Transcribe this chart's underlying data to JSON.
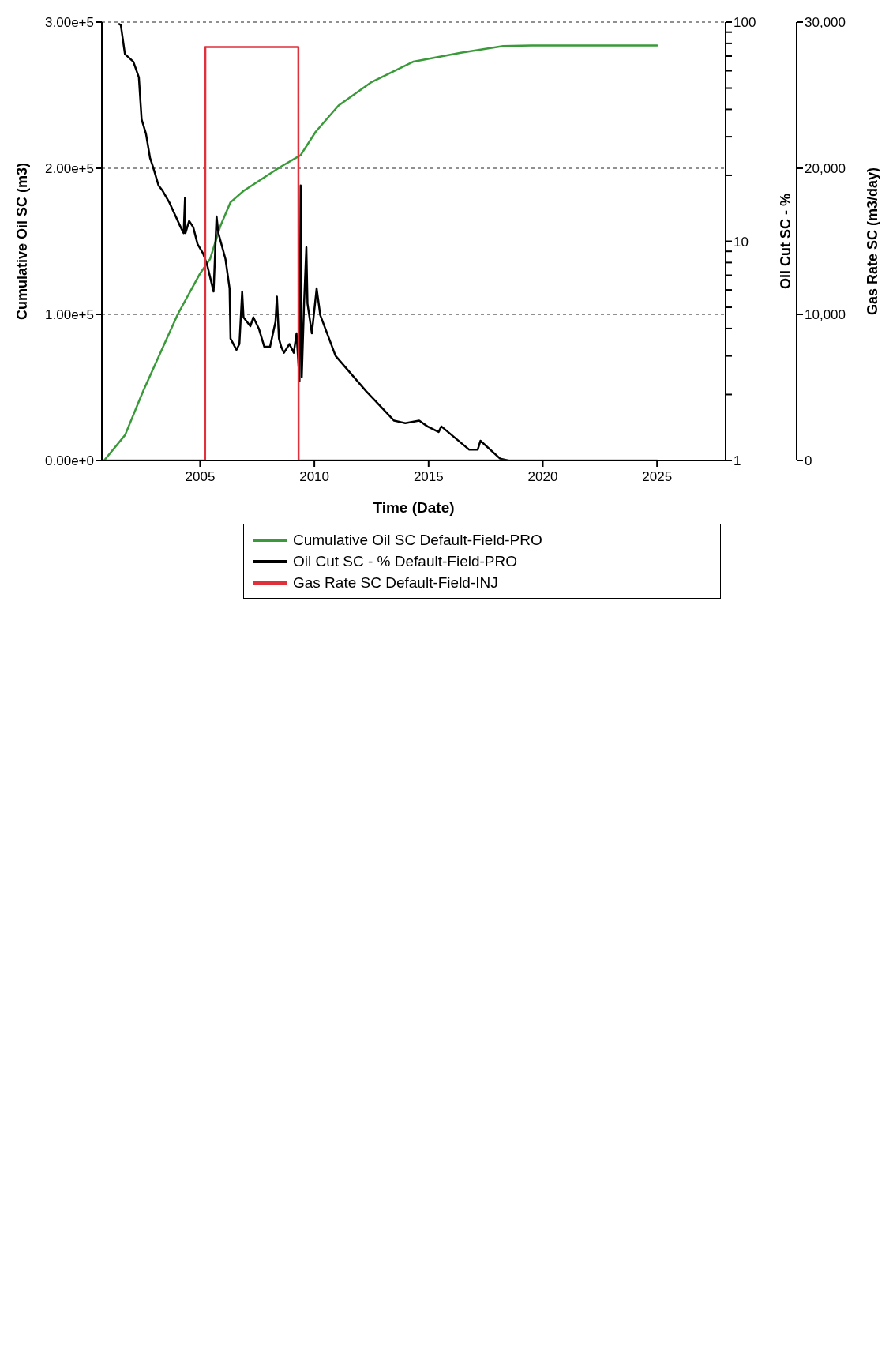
{
  "chart_data": {
    "type": "line",
    "xlabel": "Time (Date)",
    "ylabel": "Cumulative Oil SC (m3)",
    "y2label": "Oil Cut SC - %",
    "y3label": "Gas Rate SC (m3/day)",
    "xlim": [
      2000.7,
      2028
    ],
    "xticks": [
      2005,
      2010,
      2015,
      2020,
      2025
    ],
    "ylim": [
      0,
      300000
    ],
    "yticks": [
      {
        "value": 0,
        "label": "0.00e+0"
      },
      {
        "value": 100000,
        "label": "1.00e+5"
      },
      {
        "value": 200000,
        "label": "2.00e+5"
      },
      {
        "value": 300000,
        "label": "3.00e+5"
      }
    ],
    "y2lim": [
      1,
      100
    ],
    "y2ticks": [
      1,
      {
        "value": 2,
        "label": null
      },
      {
        "value": 3,
        "label": null
      },
      {
        "value": 4,
        "label": null
      },
      {
        "value": 5,
        "label": null
      },
      {
        "value": 6,
        "label": null
      },
      {
        "value": 7,
        "label": null
      },
      {
        "value": 8,
        "label": null
      },
      {
        "value": 9,
        "label": null
      },
      10,
      {
        "value": 20,
        "label": null
      },
      {
        "value": 30,
        "label": null
      },
      {
        "value": 40,
        "label": null
      },
      {
        "value": 50,
        "label": null
      },
      {
        "value": 60,
        "label": null
      },
      {
        "value": 70,
        "label": null
      },
      {
        "value": 80,
        "label": null
      },
      {
        "value": 90,
        "label": null
      },
      100
    ],
    "y3lim": [
      0,
      30000
    ],
    "y3ticks": [
      0,
      {
        "value": 10000,
        "label": "10,000"
      },
      {
        "value": 20000,
        "label": "20,000"
      },
      {
        "value": 30000,
        "label": "30,000"
      }
    ],
    "log": "y2",
    "grid": true,
    "legend": "bottom",
    "line_style": "solid",
    "marker": "none",
    "series": [
      {
        "name": "Cumulative Oil SC Default-Field-PRO",
        "color": "#3a9a3a",
        "x": [
          2000.8,
          2001.72,
          2002.51,
          2004.02,
          2005.0,
          2005.44,
          2005.89,
          2006.33,
          2006.91,
          2008.49,
          2009.4,
          2010.06,
          2011.06,
          2012.51,
          2014.34,
          2016.41,
          2018.26,
          2019.5,
          2025.0
        ],
        "values": [
          0,
          17500,
          47600,
          100000,
          128000,
          138000,
          160600,
          176700,
          184600,
          200700,
          209000,
          225000,
          243000,
          259000,
          273000,
          279000,
          283600,
          284000,
          284000
        ]
      },
      {
        "name": "Oil Cut SC - % Default-Field-PRO",
        "color": "#000000",
        "axis": "y2",
        "x": [
          2001.45,
          2001.53,
          2001.71,
          2002.08,
          2002.32,
          2002.44,
          2002.63,
          2002.81,
          2002.93,
          2003.18,
          2003.36,
          2003.66,
          2003.79,
          2004.15,
          2004.28,
          2004.34,
          2004.36,
          2004.52,
          2004.7,
          2004.89,
          2005.13,
          2005.31,
          2005.59,
          2005.72,
          2005.8,
          2006.11,
          2006.29,
          2006.33,
          2006.59,
          2006.72,
          2006.84,
          2006.9,
          2007.2,
          2007.33,
          2007.57,
          2007.81,
          2008.06,
          2008.3,
          2008.36,
          2008.45,
          2008.55,
          2008.67,
          2008.91,
          2009.1,
          2009.22,
          2009.35,
          2009.4,
          2009.45,
          2009.55,
          2009.65,
          2009.7,
          2009.89,
          2010.1,
          2010.26,
          2010.93,
          2012.27,
          2013.49,
          2013.98,
          2014.59,
          2014.95,
          2015.44,
          2015.56,
          2016.78,
          2017.15,
          2017.27,
          2018.13,
          2018.49
        ],
        "values": [
          98,
          97,
          71.5,
          66,
          56,
          36,
          31,
          24,
          22,
          18,
          17,
          15,
          14,
          11.6,
          10.9,
          15.8,
          10.9,
          12.4,
          11.6,
          9.7,
          8.8,
          7.8,
          5.9,
          13,
          10.9,
          8.3,
          6.1,
          3.6,
          3.2,
          3.4,
          5.9,
          4.5,
          4.1,
          4.5,
          4.0,
          3.3,
          3.3,
          4.3,
          5.6,
          3.6,
          3.3,
          3.1,
          3.4,
          3.1,
          3.8,
          2.3,
          18,
          2.4,
          5.2,
          9.4,
          5.2,
          3.8,
          6.1,
          4.6,
          3.0,
          2.07,
          1.52,
          1.48,
          1.52,
          1.43,
          1.35,
          1.43,
          1.12,
          1.12,
          1.23,
          1.02,
          1.0
        ]
      },
      {
        "name": "Gas Rate SC Default-Field-INJ",
        "color": "#e0303c",
        "axis": "y3",
        "x": [
          2000.8,
          2005.22,
          2005.23,
          2009.3,
          2009.31,
          2025.0
        ],
        "values": [
          0,
          0,
          28300,
          28300,
          0,
          0
        ]
      }
    ]
  }
}
